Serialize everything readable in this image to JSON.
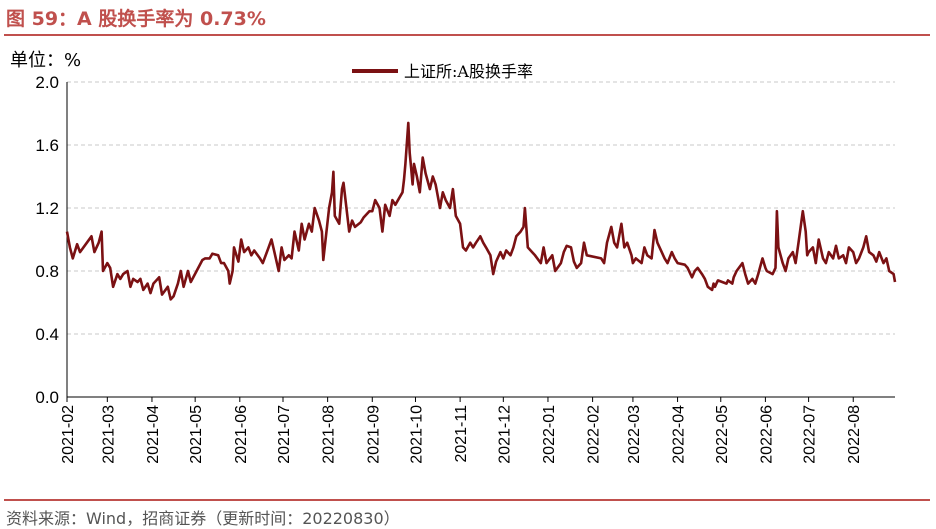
{
  "header": {
    "figure_title": "图 59：A 股换手率为 0.73%",
    "unit_label": "单位：%"
  },
  "footer": {
    "source": "资料来源：Wind，招商证券（更新时间：20220830）"
  },
  "colors": {
    "accent": "#c0504d",
    "series": "#7b1113",
    "grid": "#c8c8c8"
  },
  "chart_data": {
    "type": "line",
    "ylim": [
      0,
      2.0
    ],
    "yticks": [
      "0.0",
      "0.4",
      "0.8",
      "1.2",
      "1.6",
      "2.0"
    ],
    "ytick_values": [
      0,
      0.4,
      0.8,
      1.2,
      1.6,
      2.0
    ],
    "xticks": [
      "2021-02",
      "2021-03",
      "2021-04",
      "2021-05",
      "2021-06",
      "2021-07",
      "2021-08",
      "2021-09",
      "2021-10",
      "2021-11",
      "2021-12",
      "2022-01",
      "2022-02",
      "2022-03",
      "2022-04",
      "2022-05",
      "2022-06",
      "2022-07",
      "2022-08"
    ],
    "xlim": [
      "2021-02-01",
      "2022-08-30"
    ],
    "grid": "horizontal dashed",
    "legend": "top-center",
    "series": [
      {
        "name": "上证所:A股换手率",
        "points": [
          [
            "2021-02-01",
            1.05
          ],
          [
            "2021-02-03",
            0.95
          ],
          [
            "2021-02-05",
            0.88
          ],
          [
            "2021-02-08",
            0.97
          ],
          [
            "2021-02-10",
            0.92
          ],
          [
            "2021-02-18",
            1.02
          ],
          [
            "2021-02-20",
            0.92
          ],
          [
            "2021-02-23",
            0.98
          ],
          [
            "2021-02-25",
            1.05
          ],
          [
            "2021-02-26",
            0.8
          ],
          [
            "2021-03-01",
            0.85
          ],
          [
            "2021-03-03",
            0.82
          ],
          [
            "2021-03-05",
            0.7
          ],
          [
            "2021-03-08",
            0.78
          ],
          [
            "2021-03-10",
            0.75
          ],
          [
            "2021-03-12",
            0.78
          ],
          [
            "2021-03-15",
            0.8
          ],
          [
            "2021-03-17",
            0.7
          ],
          [
            "2021-03-19",
            0.75
          ],
          [
            "2021-03-22",
            0.73
          ],
          [
            "2021-03-24",
            0.75
          ],
          [
            "2021-03-26",
            0.68
          ],
          [
            "2021-03-29",
            0.72
          ],
          [
            "2021-03-31",
            0.66
          ],
          [
            "2021-04-02",
            0.72
          ],
          [
            "2021-04-06",
            0.76
          ],
          [
            "2021-04-08",
            0.65
          ],
          [
            "2021-04-12",
            0.7
          ],
          [
            "2021-04-14",
            0.62
          ],
          [
            "2021-04-16",
            0.64
          ],
          [
            "2021-04-19",
            0.72
          ],
          [
            "2021-04-21",
            0.8
          ],
          [
            "2021-04-23",
            0.7
          ],
          [
            "2021-04-26",
            0.8
          ],
          [
            "2021-04-28",
            0.73
          ],
          [
            "2021-05-06",
            0.87
          ],
          [
            "2021-05-08",
            0.88
          ],
          [
            "2021-05-11",
            0.88
          ],
          [
            "2021-05-13",
            0.91
          ],
          [
            "2021-05-17",
            0.9
          ],
          [
            "2021-05-19",
            0.85
          ],
          [
            "2021-05-21",
            0.85
          ],
          [
            "2021-05-24",
            0.8
          ],
          [
            "2021-05-25",
            0.72
          ],
          [
            "2021-05-27",
            0.8
          ],
          [
            "2021-05-28",
            0.95
          ],
          [
            "2021-05-31",
            0.86
          ],
          [
            "2021-06-02",
            1.0
          ],
          [
            "2021-06-04",
            0.92
          ],
          [
            "2021-06-07",
            0.95
          ],
          [
            "2021-06-09",
            0.9
          ],
          [
            "2021-06-11",
            0.93
          ],
          [
            "2021-06-15",
            0.88
          ],
          [
            "2021-06-17",
            0.85
          ],
          [
            "2021-06-21",
            0.95
          ],
          [
            "2021-06-23",
            1.0
          ],
          [
            "2021-06-25",
            0.92
          ],
          [
            "2021-06-28",
            0.8
          ],
          [
            "2021-06-30",
            0.95
          ],
          [
            "2021-07-02",
            0.87
          ],
          [
            "2021-07-05",
            0.9
          ],
          [
            "2021-07-07",
            0.88
          ],
          [
            "2021-07-09",
            1.05
          ],
          [
            "2021-07-12",
            0.93
          ],
          [
            "2021-07-14",
            1.1
          ],
          [
            "2021-07-16",
            1.0
          ],
          [
            "2021-07-19",
            1.1
          ],
          [
            "2021-07-21",
            1.05
          ],
          [
            "2021-07-23",
            1.2
          ],
          [
            "2021-07-26",
            1.12
          ],
          [
            "2021-07-28",
            1.05
          ],
          [
            "2021-07-29",
            0.87
          ],
          [
            "2021-08-02",
            1.2
          ],
          [
            "2021-08-04",
            1.3
          ],
          [
            "2021-08-05",
            1.43
          ],
          [
            "2021-08-06",
            1.15
          ],
          [
            "2021-08-09",
            1.1
          ],
          [
            "2021-08-11",
            1.32
          ],
          [
            "2021-08-12",
            1.36
          ],
          [
            "2021-08-16",
            1.05
          ],
          [
            "2021-08-18",
            1.12
          ],
          [
            "2021-08-20",
            1.08
          ],
          [
            "2021-08-24",
            1.11
          ],
          [
            "2021-08-26",
            1.14
          ],
          [
            "2021-08-30",
            1.18
          ],
          [
            "2021-09-01",
            1.18
          ],
          [
            "2021-09-03",
            1.25
          ],
          [
            "2021-09-06",
            1.2
          ],
          [
            "2021-09-08",
            1.05
          ],
          [
            "2021-09-10",
            1.22
          ],
          [
            "2021-09-13",
            1.15
          ],
          [
            "2021-09-15",
            1.25
          ],
          [
            "2021-09-17",
            1.22
          ],
          [
            "2021-09-22",
            1.3
          ],
          [
            "2021-09-23",
            1.38
          ],
          [
            "2021-09-24",
            1.48
          ],
          [
            "2021-09-26",
            1.74
          ],
          [
            "2021-09-27",
            1.55
          ],
          [
            "2021-09-28",
            1.45
          ],
          [
            "2021-09-29",
            1.35
          ],
          [
            "2021-09-30",
            1.48
          ],
          [
            "2021-10-02",
            1.4
          ],
          [
            "2021-10-04",
            1.3
          ],
          [
            "2021-10-06",
            1.52
          ],
          [
            "2021-10-08",
            1.42
          ],
          [
            "2021-10-11",
            1.32
          ],
          [
            "2021-10-13",
            1.4
          ],
          [
            "2021-10-15",
            1.35
          ],
          [
            "2021-10-18",
            1.2
          ],
          [
            "2021-10-20",
            1.3
          ],
          [
            "2021-10-22",
            1.25
          ],
          [
            "2021-10-25",
            1.2
          ],
          [
            "2021-10-27",
            1.32
          ],
          [
            "2021-10-29",
            1.15
          ],
          [
            "2021-11-01",
            1.1
          ],
          [
            "2021-11-03",
            0.95
          ],
          [
            "2021-11-05",
            0.93
          ],
          [
            "2021-11-08",
            0.98
          ],
          [
            "2021-11-10",
            0.95
          ],
          [
            "2021-11-12",
            0.98
          ],
          [
            "2021-11-15",
            1.02
          ],
          [
            "2021-11-17",
            0.98
          ],
          [
            "2021-11-19",
            0.95
          ],
          [
            "2021-11-22",
            0.9
          ],
          [
            "2021-11-24",
            0.78
          ],
          [
            "2021-11-26",
            0.86
          ],
          [
            "2021-11-29",
            0.92
          ],
          [
            "2021-12-01",
            0.88
          ],
          [
            "2021-12-03",
            0.93
          ],
          [
            "2021-12-06",
            0.9
          ],
          [
            "2021-12-08",
            0.95
          ],
          [
            "2021-12-10",
            1.02
          ],
          [
            "2021-12-13",
            1.05
          ],
          [
            "2021-12-15",
            1.08
          ],
          [
            "2021-12-16",
            1.2
          ],
          [
            "2021-12-18",
            0.95
          ],
          [
            "2021-12-21",
            0.92
          ],
          [
            "2021-12-23",
            0.9
          ],
          [
            "2021-12-27",
            0.85
          ],
          [
            "2021-12-29",
            0.95
          ],
          [
            "2021-12-31",
            0.85
          ],
          [
            "2022-01-04",
            0.9
          ],
          [
            "2022-01-06",
            0.8
          ],
          [
            "2022-01-10",
            0.85
          ],
          [
            "2022-01-12",
            0.92
          ],
          [
            "2022-01-14",
            0.96
          ],
          [
            "2022-01-17",
            0.95
          ],
          [
            "2022-01-19",
            0.86
          ],
          [
            "2022-01-21",
            0.82
          ],
          [
            "2022-01-24",
            0.85
          ],
          [
            "2022-01-26",
            0.98
          ],
          [
            "2022-01-28",
            0.9
          ],
          [
            "2022-02-07",
            0.88
          ],
          [
            "2022-02-09",
            0.85
          ],
          [
            "2022-02-11",
            0.98
          ],
          [
            "2022-02-14",
            1.08
          ],
          [
            "2022-02-16",
            0.98
          ],
          [
            "2022-02-18",
            0.95
          ],
          [
            "2022-02-21",
            1.1
          ],
          [
            "2022-02-23",
            0.95
          ],
          [
            "2022-02-25",
            0.98
          ],
          [
            "2022-02-28",
            0.9
          ],
          [
            "2022-03-01",
            0.85
          ],
          [
            "2022-03-03",
            0.88
          ],
          [
            "2022-03-07",
            0.85
          ],
          [
            "2022-03-09",
            0.95
          ],
          [
            "2022-03-11",
            0.9
          ],
          [
            "2022-03-14",
            0.88
          ],
          [
            "2022-03-16",
            1.06
          ],
          [
            "2022-03-18",
            0.98
          ],
          [
            "2022-03-21",
            0.92
          ],
          [
            "2022-03-23",
            0.88
          ],
          [
            "2022-03-25",
            0.85
          ],
          [
            "2022-03-28",
            0.92
          ],
          [
            "2022-03-30",
            0.88
          ],
          [
            "2022-04-01",
            0.85
          ],
          [
            "2022-04-06",
            0.84
          ],
          [
            "2022-04-08",
            0.82
          ],
          [
            "2022-04-11",
            0.76
          ],
          [
            "2022-04-13",
            0.8
          ],
          [
            "2022-04-15",
            0.82
          ],
          [
            "2022-04-18",
            0.78
          ],
          [
            "2022-04-20",
            0.75
          ],
          [
            "2022-04-22",
            0.7
          ],
          [
            "2022-04-25",
            0.68
          ],
          [
            "2022-04-26",
            0.72
          ],
          [
            "2022-04-27",
            0.7
          ],
          [
            "2022-04-28",
            0.72
          ],
          [
            "2022-04-29",
            0.74
          ],
          [
            "2022-05-05",
            0.72
          ],
          [
            "2022-05-06",
            0.74
          ],
          [
            "2022-05-09",
            0.72
          ],
          [
            "2022-05-10",
            0.76
          ],
          [
            "2022-05-12",
            0.8
          ],
          [
            "2022-05-16",
            0.85
          ],
          [
            "2022-05-18",
            0.78
          ],
          [
            "2022-05-20",
            0.72
          ],
          [
            "2022-05-23",
            0.75
          ],
          [
            "2022-05-25",
            0.72
          ],
          [
            "2022-05-27",
            0.78
          ],
          [
            "2022-05-30",
            0.88
          ],
          [
            "2022-06-01",
            0.82
          ],
          [
            "2022-06-02",
            0.8
          ],
          [
            "2022-06-06",
            0.78
          ],
          [
            "2022-06-08",
            0.82
          ],
          [
            "2022-06-09",
            1.18
          ],
          [
            "2022-06-10",
            0.95
          ],
          [
            "2022-06-13",
            0.85
          ],
          [
            "2022-06-15",
            0.8
          ],
          [
            "2022-06-17",
            0.88
          ],
          [
            "2022-06-20",
            0.92
          ],
          [
            "2022-06-22",
            0.85
          ],
          [
            "2022-06-24",
            0.98
          ],
          [
            "2022-06-27",
            1.18
          ],
          [
            "2022-06-29",
            1.05
          ],
          [
            "2022-06-30",
            0.9
          ],
          [
            "2022-07-01",
            0.92
          ],
          [
            "2022-07-04",
            0.95
          ],
          [
            "2022-07-06",
            0.85
          ],
          [
            "2022-07-08",
            1.0
          ],
          [
            "2022-07-11",
            0.88
          ],
          [
            "2022-07-13",
            0.85
          ],
          [
            "2022-07-15",
            0.92
          ],
          [
            "2022-07-18",
            0.88
          ],
          [
            "2022-07-20",
            0.96
          ],
          [
            "2022-07-22",
            0.88
          ],
          [
            "2022-07-25",
            0.9
          ],
          [
            "2022-07-27",
            0.85
          ],
          [
            "2022-07-29",
            0.95
          ],
          [
            "2022-08-01",
            0.92
          ],
          [
            "2022-08-03",
            0.85
          ],
          [
            "2022-08-05",
            0.88
          ],
          [
            "2022-08-08",
            0.95
          ],
          [
            "2022-08-10",
            1.02
          ],
          [
            "2022-08-12",
            0.92
          ],
          [
            "2022-08-15",
            0.9
          ],
          [
            "2022-08-17",
            0.86
          ],
          [
            "2022-08-19",
            0.92
          ],
          [
            "2022-08-22",
            0.85
          ],
          [
            "2022-08-24",
            0.88
          ],
          [
            "2022-08-26",
            0.8
          ],
          [
            "2022-08-29",
            0.78
          ],
          [
            "2022-08-30",
            0.73
          ]
        ]
      }
    ]
  }
}
